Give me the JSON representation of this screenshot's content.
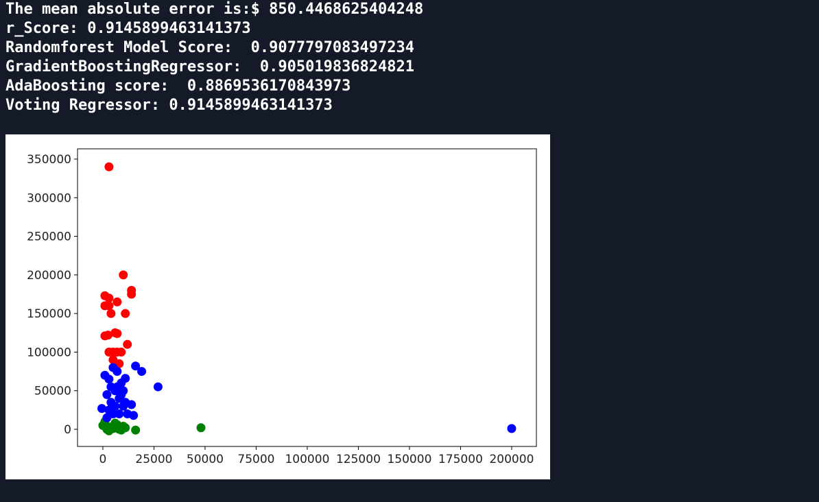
{
  "terminal": {
    "lines": [
      "The mean absolute error is:$ 850.4468625404248",
      "r_Score: 0.9145899463141373",
      "Randomforest Model Score:  0.9077797083497234",
      "GradientBoostingRegressor:  0.905019836824821",
      "AdaBoosting score:  0.8869536170843973",
      "Voting Regressor: 0.9145899463141373"
    ]
  },
  "chart_data": {
    "type": "scatter",
    "xlim": [
      -12400,
      212100
    ],
    "ylim": [
      -22200,
      363300
    ],
    "xticks": [
      0,
      25000,
      50000,
      75000,
      100000,
      125000,
      150000,
      175000,
      200000
    ],
    "yticks": [
      0,
      50000,
      100000,
      150000,
      200000,
      250000,
      300000,
      350000
    ],
    "series": [
      {
        "color": "#ff0000",
        "x": [
          3000,
          10000,
          14000,
          14000,
          1000,
          3000,
          7000,
          1000,
          3000,
          4000,
          11000,
          1000,
          2500,
          6000,
          7000,
          12000,
          3000,
          5000,
          7000,
          9000,
          5000,
          8000
        ],
        "values": [
          340000,
          200000,
          180000,
          175000,
          173000,
          170000,
          165000,
          160000,
          160000,
          150000,
          150000,
          121000,
          122000,
          125000,
          124000,
          110000,
          100000,
          100000,
          100000,
          100000,
          90000,
          85000
        ]
      },
      {
        "color": "#008000",
        "x": [
          48000,
          16000,
          0,
          2000,
          4000,
          6000,
          8000,
          10000,
          1000,
          3000,
          5000,
          7000,
          9000,
          11000
        ],
        "values": [
          2000,
          -1000,
          5000,
          0,
          3000,
          8000,
          0,
          4000,
          10000,
          -2000,
          1000,
          6000,
          -1000,
          2000
        ]
      },
      {
        "color": "#0000ff",
        "x": [
          16000,
          19000,
          27000,
          200000,
          15000,
          14000,
          1000,
          3000,
          5000,
          7000,
          9000,
          11000,
          2000,
          4000,
          6000,
          8000,
          10000,
          12000,
          3000,
          5000,
          7000,
          9000,
          11000,
          -500,
          2000,
          4000,
          6000,
          8000,
          10000
        ],
        "values": [
          82000,
          75000,
          55000,
          1000,
          18000,
          32000,
          70000,
          65000,
          80000,
          75000,
          60000,
          66000,
          45000,
          35000,
          50000,
          40000,
          30000,
          20000,
          25000,
          20000,
          55000,
          45000,
          35000,
          27000,
          15000,
          55000,
          30000,
          20000,
          50000
        ]
      }
    ]
  }
}
